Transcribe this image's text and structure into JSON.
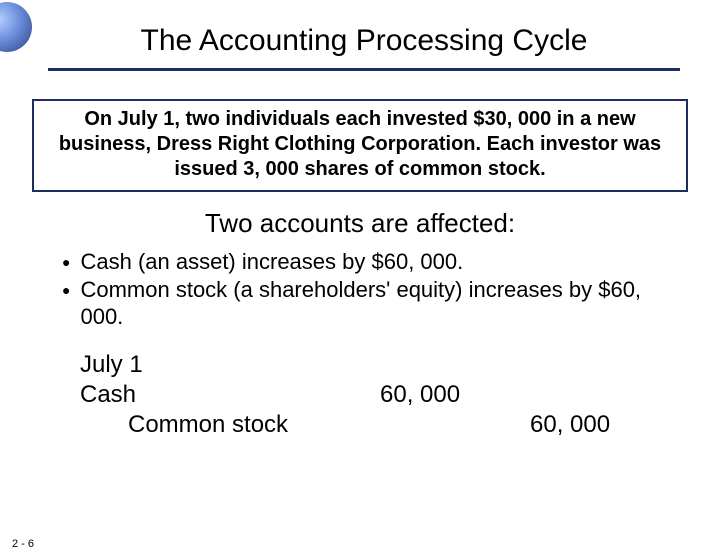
{
  "slide": {
    "title": "The Accounting Processing Cycle",
    "scenario": "On July 1, two individuals each invested $30, 000 in a new business, Dress Right Clothing Corporation. Each investor was issued 3, 000 shares of common stock.",
    "affected_heading": "Two accounts are affected:",
    "bullets": [
      "Cash (an asset) increases by $60, 000.",
      "Common stock (a shareholders' equity) increases by $60, 000."
    ],
    "journal": {
      "date": "July 1",
      "debit_account": "Cash",
      "debit_amount": "60, 000",
      "credit_account": "Common stock",
      "credit_amount": "60, 000"
    },
    "slide_number": "2 - 6"
  },
  "style": {
    "accent_color": "#1d2d5e",
    "scenario_border_color": "#1d2d5e",
    "background_color": "#ffffff",
    "title_fontsize": 30,
    "scenario_fontsize": 20,
    "heading_fontsize": 26,
    "bullet_fontsize": 22,
    "journal_fontsize": 24
  }
}
